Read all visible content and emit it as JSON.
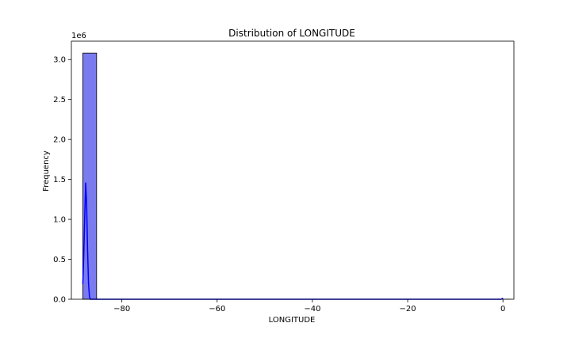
{
  "chart_data": {
    "type": "bar",
    "title": "Distribution of LONGITUDE",
    "xlabel": "LONGITUDE",
    "ylabel": "Frequency",
    "y_multiplier_label": "1e6",
    "xlim": [
      -90.6,
      2.3
    ],
    "ylim": [
      0,
      3.23
    ],
    "x_ticks": [
      -80,
      -60,
      -40,
      -20,
      0
    ],
    "x_tick_labels": [
      "−80",
      "−60",
      "−40",
      "−20",
      "0"
    ],
    "y_ticks": [
      0,
      0.5,
      1.0,
      1.5,
      2.0,
      2.5,
      3.0
    ],
    "y_tick_labels": [
      "0.0",
      "0.5",
      "1.0",
      "1.5",
      "2.0",
      "2.5",
      "3.0"
    ],
    "bin_width": 2.9,
    "bins_start": [
      -88.2,
      -85.3,
      -82.4,
      -79.5,
      -76.6,
      -73.7,
      -70.8,
      -67.9,
      -65.0,
      -62.1,
      -59.2,
      -56.3,
      -53.4,
      -50.5,
      -47.6,
      -44.7,
      -41.8,
      -38.9,
      -36.0,
      -33.1,
      -30.2,
      -27.3,
      -24.4,
      -21.5,
      -18.6,
      -15.7,
      -12.8,
      -9.9,
      -7.0,
      -4.1,
      -1.2
    ],
    "counts": [
      3.08,
      0,
      0,
      0,
      0,
      0,
      0,
      0,
      0,
      0,
      0,
      0,
      0,
      0,
      0,
      0,
      0,
      0,
      0,
      0,
      0,
      0,
      0,
      0,
      0,
      0,
      0,
      0,
      0,
      0,
      0.003
    ],
    "kde": {
      "x": [
        -88.2,
        -88.0,
        -87.8,
        -87.6,
        -87.4,
        -87.2,
        -87.0,
        -86.8,
        -86.6,
        -80,
        -60,
        -40,
        -20,
        -0.4,
        -0.1,
        0
      ],
      "y": [
        0.19,
        0.55,
        1.02,
        1.46,
        1.2,
        0.62,
        0.2,
        0.03,
        0.0,
        0.0,
        0.0,
        0.0,
        0.0,
        0.0,
        0.01,
        0.0
      ]
    },
    "grid": false,
    "colors": {
      "bar_fill": "#7b7bf0",
      "bar_edge": "#000000",
      "kde_line": "#0000ff"
    }
  }
}
